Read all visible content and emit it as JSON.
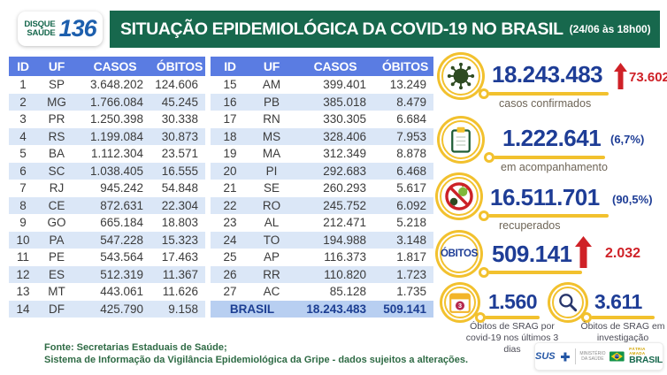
{
  "header": {
    "logo_line1": "DISQUE",
    "logo_line2": "SAÚDE",
    "logo_number": "136",
    "title": "SITUAÇÃO EPIDEMIOLÓGICA DA COVID-19 NO BRASIL",
    "timestamp": "(24/06 às 18h00)"
  },
  "tables": {
    "headers": [
      "ID",
      "UF",
      "CASOS",
      "ÓBITOS"
    ],
    "left_rows": [
      [
        "1",
        "SP",
        "3.648.202",
        "124.606"
      ],
      [
        "2",
        "MG",
        "1.766.084",
        "45.245"
      ],
      [
        "3",
        "PR",
        "1.250.398",
        "30.338"
      ],
      [
        "4",
        "RS",
        "1.199.084",
        "30.873"
      ],
      [
        "5",
        "BA",
        "1.112.304",
        "23.571"
      ],
      [
        "6",
        "SC",
        "1.038.405",
        "16.555"
      ],
      [
        "7",
        "RJ",
        "945.242",
        "54.848"
      ],
      [
        "8",
        "CE",
        "872.631",
        "22.304"
      ],
      [
        "9",
        "GO",
        "665.184",
        "18.803"
      ],
      [
        "10",
        "PA",
        "547.228",
        "15.323"
      ],
      [
        "11",
        "PE",
        "543.564",
        "17.463"
      ],
      [
        "12",
        "ES",
        "512.319",
        "11.367"
      ],
      [
        "13",
        "MT",
        "443.061",
        "11.626"
      ],
      [
        "14",
        "DF",
        "425.790",
        "9.158"
      ]
    ],
    "right_rows": [
      [
        "15",
        "AM",
        "399.401",
        "13.249"
      ],
      [
        "16",
        "PB",
        "385.018",
        "8.479"
      ],
      [
        "17",
        "RN",
        "330.305",
        "6.684"
      ],
      [
        "18",
        "MS",
        "328.406",
        "7.953"
      ],
      [
        "19",
        "MA",
        "312.349",
        "8.878"
      ],
      [
        "20",
        "PI",
        "292.683",
        "6.468"
      ],
      [
        "21",
        "SE",
        "260.293",
        "5.617"
      ],
      [
        "22",
        "RO",
        "245.752",
        "6.092"
      ],
      [
        "23",
        "AL",
        "212.471",
        "5.218"
      ],
      [
        "24",
        "TO",
        "194.988",
        "3.148"
      ],
      [
        "25",
        "AP",
        "116.373",
        "1.817"
      ],
      [
        "26",
        "RR",
        "110.820",
        "1.723"
      ],
      [
        "27",
        "AC",
        "85.128",
        "1.735"
      ]
    ],
    "total": {
      "label": "BRASIL",
      "casos": "18.243.483",
      "obitos": "509.141"
    }
  },
  "stats": {
    "confirmed": {
      "value": "18.243.483",
      "delta": "73.602",
      "label": "casos confirmados"
    },
    "monitoring": {
      "value": "1.222.641",
      "percent": "(6,7%)",
      "label": "em acompanhamento"
    },
    "recovered": {
      "value": "16.511.701",
      "percent": "(90,5%)",
      "label": "recuperados"
    },
    "deaths": {
      "circle_text": "ÓBITOS",
      "value": "509.141",
      "delta": "2.032"
    }
  },
  "srag": {
    "recent": {
      "value": "1.560",
      "label": "Óbitos de SRAG por covid-19 nos últimos 3 dias",
      "badge": "3"
    },
    "investigation": {
      "value": "3.611",
      "label": "Óbitos de SRAG em investigação"
    }
  },
  "footer": {
    "source_line1": "Fonte: Secretarias Estaduais de Saúde;",
    "source_line2": "Sistema de Informação da Vigilância Epidemiológica da Gripe - dados sujeitos a alterações.",
    "sus_label": "SUS",
    "ministry_label": "MINISTÉRIO DA SAÚDE",
    "motto_top": "PÁTRIA AMADA",
    "motto_bottom": "BRASIL"
  },
  "colors": {
    "green_bar": "#17684d",
    "table_header_blue": "#5a7ce2",
    "row_alt_blue": "#dbe7f7",
    "total_row_blue": "#b8cff1",
    "navy": "#1e3d96",
    "red": "#cf2127",
    "yellow": "#f2c12e"
  },
  "chart_data": {
    "type": "table",
    "title": "SITUAÇÃO EPIDEMIOLÓGICA DA COVID-19 NO BRASIL (24/06 às 18h00)",
    "columns": [
      "ID",
      "UF",
      "CASOS",
      "ÓBITOS"
    ],
    "rows": [
      [
        1,
        "SP",
        3648202,
        124606
      ],
      [
        2,
        "MG",
        1766084,
        45245
      ],
      [
        3,
        "PR",
        1250398,
        30338
      ],
      [
        4,
        "RS",
        1199084,
        30873
      ],
      [
        5,
        "BA",
        1112304,
        23571
      ],
      [
        6,
        "SC",
        1038405,
        16555
      ],
      [
        7,
        "RJ",
        945242,
        54848
      ],
      [
        8,
        "CE",
        872631,
        22304
      ],
      [
        9,
        "GO",
        665184,
        18803
      ],
      [
        10,
        "PA",
        547228,
        15323
      ],
      [
        11,
        "PE",
        543564,
        17463
      ],
      [
        12,
        "ES",
        512319,
        11367
      ],
      [
        13,
        "MT",
        443061,
        11626
      ],
      [
        14,
        "DF",
        425790,
        9158
      ],
      [
        15,
        "AM",
        399401,
        13249
      ],
      [
        16,
        "PB",
        385018,
        8479
      ],
      [
        17,
        "RN",
        330305,
        6684
      ],
      [
        18,
        "MS",
        328406,
        7953
      ],
      [
        19,
        "MA",
        312349,
        8878
      ],
      [
        20,
        "PI",
        292683,
        6468
      ],
      [
        21,
        "SE",
        260293,
        5617
      ],
      [
        22,
        "RO",
        245752,
        6092
      ],
      [
        23,
        "AL",
        212471,
        5218
      ],
      [
        24,
        "TO",
        194988,
        3148
      ],
      [
        25,
        "AP",
        116373,
        1817
      ],
      [
        26,
        "RR",
        110820,
        1723
      ],
      [
        27,
        "AC",
        85128,
        1735
      ]
    ],
    "total": {
      "uf": "BRASIL",
      "casos": 18243483,
      "obitos": 509141
    },
    "annotations": [
      {
        "label": "casos confirmados",
        "value": 18243483,
        "delta": 73602
      },
      {
        "label": "em acompanhamento",
        "value": 1222641,
        "percent": "6,7%"
      },
      {
        "label": "recuperados",
        "value": 16511701,
        "percent": "90,5%"
      },
      {
        "label": "óbitos",
        "value": 509141,
        "delta": 2032
      },
      {
        "label": "Óbitos de SRAG por covid-19 nos últimos 3 dias",
        "value": 1560
      },
      {
        "label": "Óbitos de SRAG em investigação",
        "value": 3611
      }
    ]
  }
}
